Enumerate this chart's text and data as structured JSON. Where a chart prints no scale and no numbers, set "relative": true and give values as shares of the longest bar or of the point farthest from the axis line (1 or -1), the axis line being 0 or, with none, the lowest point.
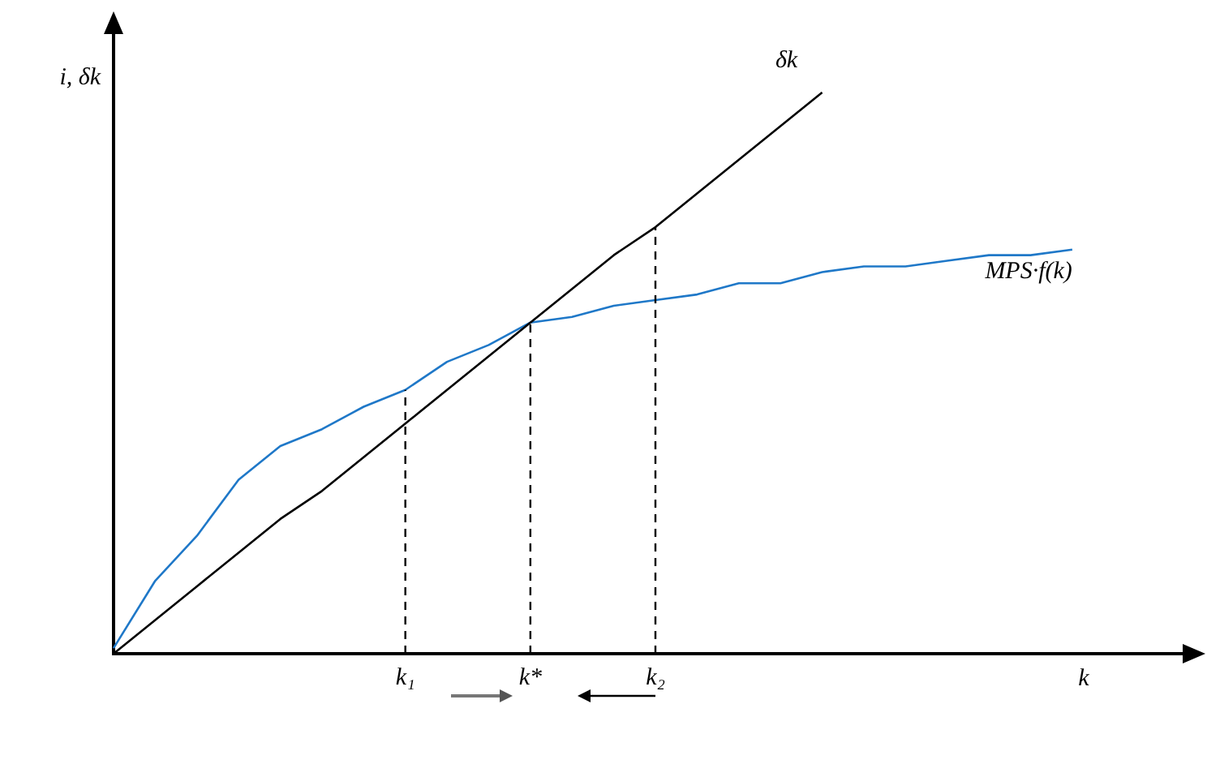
{
  "chart_data": {
    "type": "line",
    "relative": true,
    "ylabel": "i, δk",
    "xlabel": "k",
    "tick_labels": "x",
    "marker": "none",
    "line_style": "solid",
    "categories": [
      null,
      null,
      null,
      null,
      null,
      null,
      null,
      "k₁",
      null,
      null,
      "k*",
      null,
      null,
      "k₂",
      null,
      null,
      null,
      null,
      null,
      null,
      null,
      null,
      null,
      null,
      null,
      null,
      null
    ],
    "series": [
      {
        "name": "δk",
        "color": "#000000",
        "values": [
          0,
          0.06,
          0.12,
          0.18,
          0.24,
          0.29,
          0.35,
          0.41,
          0.47,
          0.53,
          0.59,
          0.65,
          0.71,
          0.76,
          0.82,
          0.88,
          0.94,
          1,
          null,
          null,
          null,
          null,
          null,
          null,
          null,
          null,
          null
        ]
      },
      {
        "name": "MPS·f(k)",
        "color": "#1f78c8",
        "values": [
          0.01,
          0.13,
          0.21,
          0.31,
          0.37,
          0.4,
          0.44,
          0.47,
          0.52,
          0.55,
          0.59,
          0.6,
          0.62,
          0.63,
          0.64,
          0.66,
          0.66,
          0.68,
          0.69,
          0.69,
          0.7,
          0.71,
          0.71,
          0.72,
          null,
          null,
          null
        ]
      }
    ],
    "ref_lines": [
      {
        "axis": "x",
        "value": "k₁",
        "line_style": "dashed",
        "color": "#000000"
      },
      {
        "axis": "x",
        "value": "k*",
        "line_style": "dashed",
        "color": "#000000"
      },
      {
        "axis": "x",
        "value": "k₂",
        "line_style": "dashed",
        "color": "#000000"
      }
    ]
  }
}
